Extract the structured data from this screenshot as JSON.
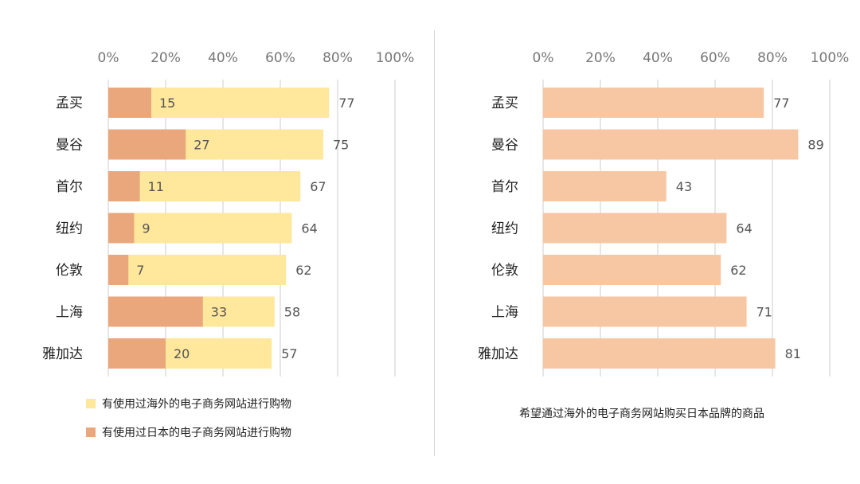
{
  "colors": {
    "overseas": "#FFE79B",
    "japan": "#EBA77C",
    "wish": "#F7C7A4",
    "grid": "#cccccc",
    "tick_text": "#777777",
    "value_text": "#555555"
  },
  "chart_data": [
    {
      "type": "bar",
      "orientation": "horizontal",
      "categories": [
        "孟买",
        "曼谷",
        "首尔",
        "纽约",
        "伦敦",
        "上海",
        "雅加达"
      ],
      "x_ticks": [
        "0%",
        "20%",
        "40%",
        "60%",
        "80%",
        "100%"
      ],
      "xlim": [
        0,
        100
      ],
      "grid": true,
      "legend_position": "bottom",
      "series": [
        {
          "name": "有使用过海外的电子商务网站进行购物",
          "values": [
            77,
            75,
            67,
            64,
            62,
            58,
            57
          ]
        },
        {
          "name": "有使用过日本的电子商务网站进行购物",
          "values": [
            15,
            27,
            11,
            9,
            7,
            33,
            20
          ]
        }
      ]
    },
    {
      "type": "bar",
      "orientation": "horizontal",
      "categories": [
        "孟买",
        "曼谷",
        "首尔",
        "纽约",
        "伦敦",
        "上海",
        "雅加达"
      ],
      "x_ticks": [
        "0%",
        "20%",
        "40%",
        "60%",
        "80%",
        "100%"
      ],
      "xlim": [
        0,
        100
      ],
      "grid": true,
      "caption": "希望通过海外的电子商务网站购买日本品牌的商品",
      "series": [
        {
          "values": [
            77,
            89,
            43,
            64,
            62,
            71,
            81
          ]
        }
      ]
    }
  ]
}
